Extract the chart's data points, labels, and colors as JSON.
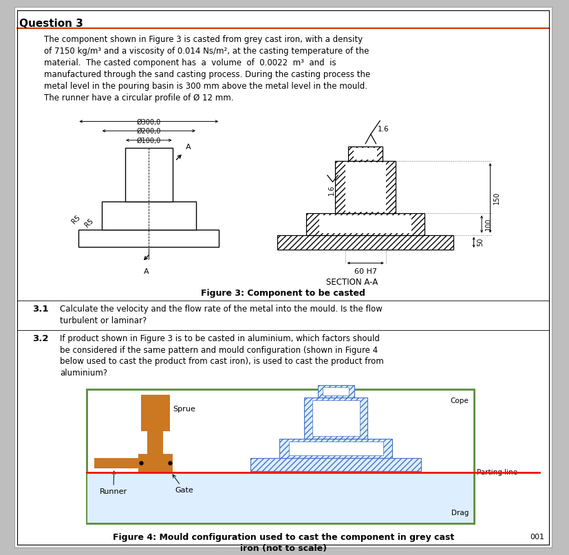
{
  "title": "Question 3",
  "body_text_lines": [
    "The component shown in Figure 3 is casted from grey cast iron, with a density",
    "of 7150 kg/m³ and a viscosity of 0.014 Ns/m², at the casting temperature of the",
    "material.  The casted component has  a  volume  of  0.0022  m³  and  is",
    "manufactured through the sand casting process. During the casting process the",
    "metal level in the pouring basin is 300 mm above the metal level in the mould.",
    "The runner have a circular profile of Ø 12 mm."
  ],
  "q31_label": "3.1",
  "q31_text_lines": [
    "Calculate the velocity and the flow rate of the metal into the mould. Is the flow",
    "turbulent or laminar?"
  ],
  "q32_label": "3.2",
  "q32_text_lines": [
    "If product shown in Figure 3 is to be casted in aluminium, which factors should",
    "be considered if the same pattern and mould configuration (shown in Figure 4",
    "below used to cast the product from cast iron), is used to cast the product from",
    "aluminium?"
  ],
  "fig3_caption": "Figure 3: Component to be casted",
  "section_label": "SECTION A-A",
  "fig4_caption_line1": "Figure 4: Mould configuration used to cast the component in grey cast",
  "fig4_caption_line2": "iron (not to scale)",
  "orange_color": "#CC7722",
  "blue_border": "#4472C4",
  "green_border": "#5B8C3E",
  "red_line": "#EE1111",
  "light_blue_fill": "#DDEEFF",
  "white": "#FFFFFF",
  "black": "#000000",
  "gray_bg": "#C8C8C8",
  "page_bg": "#BEBEBE",
  "hatch_blue": "#4472C4",
  "page_number": "001"
}
